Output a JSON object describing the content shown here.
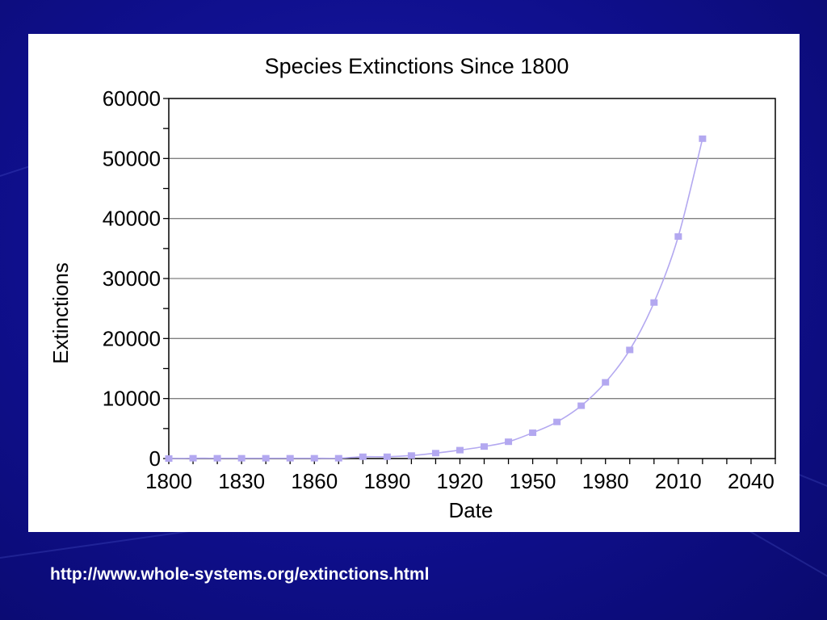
{
  "slide": {
    "source_url": "http://www.whole-systems.org/extinctions.html"
  },
  "colors": {
    "background": "#0f0f8c",
    "series": "#b3a8f0",
    "text": "#ffffff"
  },
  "chart_data": {
    "type": "line",
    "title": "Species Extinctions Since 1800",
    "xlabel": "Date",
    "ylabel": "Extinctions",
    "xlim": [
      1800,
      2050
    ],
    "ylim": [
      0,
      60000
    ],
    "xticks": [
      1800,
      1830,
      1860,
      1890,
      1920,
      1950,
      1980,
      2010,
      2040
    ],
    "yticks": [
      0,
      10000,
      20000,
      30000,
      40000,
      50000,
      60000
    ],
    "grid": "horizontal",
    "series": [
      {
        "x": [
          1800,
          1810,
          1820,
          1830,
          1840,
          1850,
          1860,
          1870,
          1880,
          1890,
          1900,
          1910,
          1920,
          1930,
          1940,
          1950,
          1960,
          1970,
          1980,
          1990,
          2000,
          2010,
          2020
        ],
        "values": [
          0,
          50,
          50,
          50,
          50,
          50,
          50,
          50,
          300,
          300,
          500,
          900,
          1400,
          2000,
          2800,
          4300,
          6100,
          8800,
          12700,
          18100,
          26000,
          37000,
          53300
        ]
      }
    ]
  }
}
